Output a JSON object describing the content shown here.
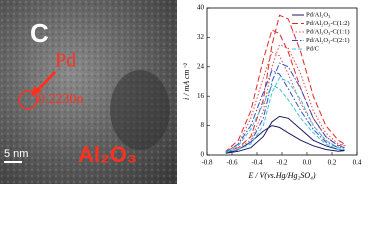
{
  "image_labels": {
    "carbon": "C",
    "pd": "Pd",
    "spacing": "0.2230n",
    "scale": "5 nm",
    "support": "Al₂O₃"
  },
  "chart_data": {
    "type": "line",
    "xlabel": "E / V(vs.Hg/Hg₂SO₄)",
    "ylabel": "i / mA cm⁻²",
    "xlim": [
      -0.8,
      0.4
    ],
    "xticks": [
      -0.8,
      -0.6,
      -0.4,
      -0.2,
      {
        "value": 0,
        "label": "0.0"
      },
      0.2,
      0.4
    ],
    "ylim": [
      0,
      40
    ],
    "yticks": [
      0,
      8,
      16,
      24,
      32,
      40
    ],
    "legend": "upper right",
    "x": [
      -0.65,
      -0.55,
      -0.45,
      -0.35,
      -0.28,
      -0.22,
      -0.15,
      -0.05,
      0.05,
      0.15,
      0.25,
      0.3,
      0.25,
      0.15,
      0.05,
      -0.05,
      -0.15,
      -0.22,
      -0.28,
      -0.35,
      -0.45,
      -0.55,
      -0.65
    ],
    "series": [
      {
        "name": "Pd/Al₂O₃",
        "color": "#1a1a60",
        "values": [
          0.5,
          1,
          2,
          5,
          9,
          10.5,
          10,
          7,
          4,
          2.5,
          1.5,
          1.2,
          1,
          1.5,
          2.5,
          4,
          6,
          7.5,
          8,
          6.5,
          3.5,
          1.5,
          0.5
        ]
      },
      {
        "name": "Pd/Al₂O₃-C(1:2)",
        "color": "#e02828",
        "values": [
          1,
          2,
          5,
          15,
          30,
          38,
          37,
          28,
          16,
          8,
          4,
          3,
          2.5,
          5,
          10,
          18,
          28,
          33,
          34,
          26,
          12,
          4,
          1
        ]
      },
      {
        "name": "Pd/Al₂O₃-C(1:1)",
        "color": "#e04a4a",
        "values": [
          1,
          2,
          4,
          12,
          24,
          30,
          29,
          22,
          12,
          6,
          3,
          2.5,
          2,
          4,
          8,
          14,
          22,
          27,
          28,
          21,
          10,
          3,
          1
        ]
      },
      {
        "name": "Pd/Al₂O₃-C(2:1)",
        "color": "#3050c0",
        "values": [
          0.8,
          1.5,
          3.5,
          10,
          20,
          25,
          24,
          18,
          10,
          5,
          2.5,
          2,
          2,
          3.5,
          7,
          12,
          18,
          22,
          23,
          17,
          8,
          3,
          0.8
        ]
      },
      {
        "name": "Pd/C",
        "color": "#40c0e0",
        "values": [
          0.8,
          1.5,
          3,
          8,
          17,
          21,
          20,
          15,
          8,
          4,
          2,
          1.5,
          1.5,
          3,
          6,
          10,
          15,
          18,
          19,
          14,
          7,
          2.5,
          0.7
        ]
      }
    ]
  }
}
